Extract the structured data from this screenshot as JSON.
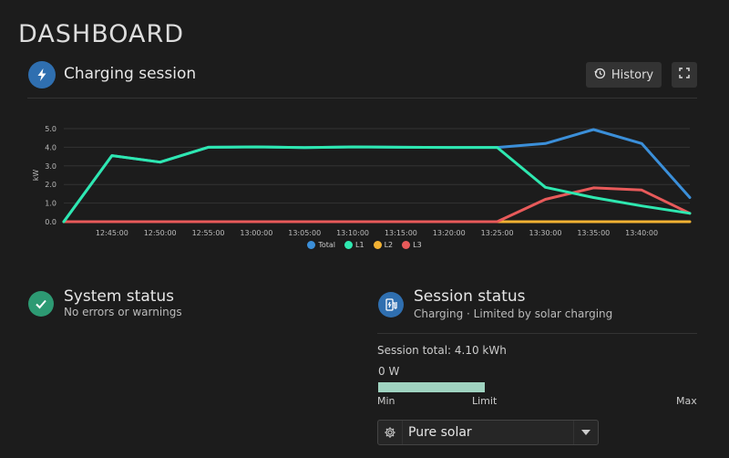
{
  "page": {
    "title": "DASHBOARD"
  },
  "charging_card": {
    "title": "Charging session",
    "history_label": "History",
    "icon": "lightning-icon",
    "icon_color": "#2f6fb0"
  },
  "chart_data": {
    "type": "line",
    "x": [
      "12:40:00",
      "12:45:00",
      "12:50:00",
      "12:55:00",
      "13:00:00",
      "13:05:00",
      "13:10:00",
      "13:15:00",
      "13:20:00",
      "13:25:00",
      "13:30:00",
      "13:35:00",
      "13:40:00",
      "13:45:00"
    ],
    "tick_labels": [
      "12:45:00",
      "12:50:00",
      "12:55:00",
      "13:00:00",
      "13:05:00",
      "13:10:00",
      "13:15:00",
      "13:20:00",
      "13:25:00",
      "13:30:00",
      "13:35:00",
      "13:40:00"
    ],
    "ylabel": "kW",
    "yticks": [
      "0.0",
      "1.0",
      "2.0",
      "3.0",
      "4.0",
      "5.0"
    ],
    "ylim": [
      0,
      5
    ],
    "grid": true,
    "legend_position": "bottom",
    "series": [
      {
        "name": "Total",
        "color": "#3b8fd9",
        "values": [
          0.0,
          3.55,
          3.2,
          4.0,
          4.02,
          3.98,
          4.02,
          4.0,
          3.99,
          3.99,
          4.2,
          4.95,
          4.2,
          1.3
        ]
      },
      {
        "name": "L1",
        "color": "#2ee8b0",
        "values": [
          0.0,
          3.55,
          3.2,
          4.0,
          4.02,
          3.98,
          4.02,
          4.0,
          3.99,
          3.99,
          1.85,
          1.3,
          0.85,
          0.45
        ]
      },
      {
        "name": "L2",
        "color": "#f2b233",
        "values": [
          0.0,
          0.0,
          0.0,
          0.0,
          0.0,
          0.0,
          0.0,
          0.0,
          0.0,
          0.0,
          0.0,
          0.0,
          0.0,
          0.0
        ]
      },
      {
        "name": "L3",
        "color": "#e85a5a",
        "values": [
          0.0,
          0.0,
          0.0,
          0.0,
          0.0,
          0.0,
          0.0,
          0.0,
          0.0,
          0.0,
          1.2,
          1.82,
          1.7,
          0.45
        ]
      }
    ]
  },
  "system_status": {
    "title": "System status",
    "subtitle": "No errors or warnings",
    "icon": "check-icon",
    "icon_color": "#2d9a73"
  },
  "session_status": {
    "title": "Session status",
    "subtitle": "Charging · Limited by solar charging",
    "icon": "ev-charger-icon",
    "icon_color": "#2f6fb0",
    "session_total": "Session total: 4.10 kWh",
    "power": "0 W",
    "progress_fraction": 0.333,
    "bar_color": "#9fd3c0",
    "min_label": "Min",
    "limit_label": "Limit",
    "max_label": "Max",
    "mode_value": "Pure solar"
  }
}
